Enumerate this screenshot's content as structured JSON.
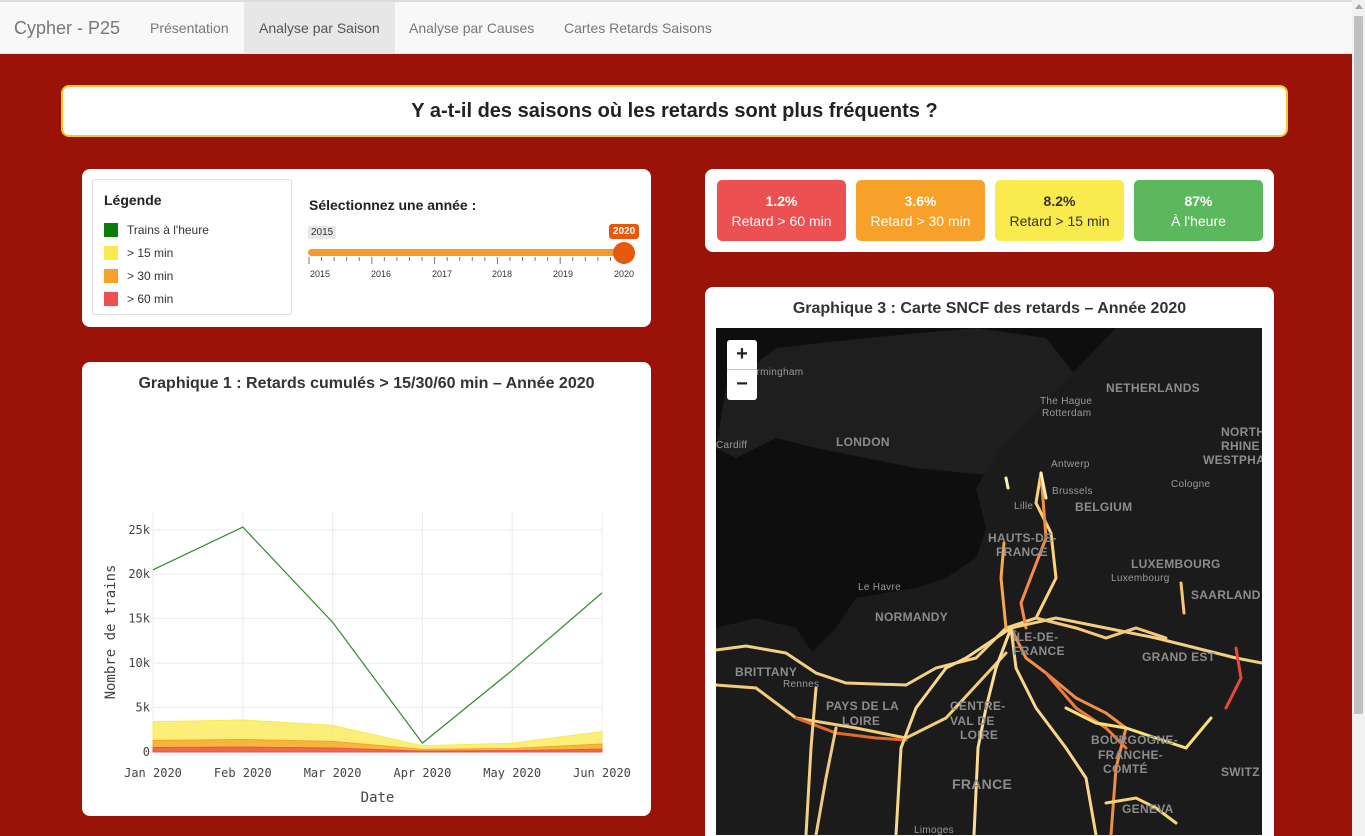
{
  "nav": {
    "brand": "Cypher - P25",
    "tabs": [
      "Présentation",
      "Analyse par Saison",
      "Analyse par Causes",
      "Cartes Retards Saisons"
    ],
    "active_tab": "Analyse par Saison"
  },
  "page_title": "Y a-t-il des saisons où les retards sont plus fréquents ?",
  "legend": {
    "title": "Légende",
    "items": [
      {
        "label": "Trains à l'heure",
        "color": "#0a7d0a"
      },
      {
        "label": "> 15 min",
        "color": "#f9ea4e"
      },
      {
        "label": "> 30 min",
        "color": "#f7a12a"
      },
      {
        "label": "> 60 min",
        "color": "#ec5050"
      }
    ]
  },
  "year_selector": {
    "label": "Sélectionnez une année :",
    "min": "2015",
    "max": "2020",
    "value": "2020",
    "ticks": [
      "2015",
      "2016",
      "2017",
      "2018",
      "2019",
      "2020"
    ]
  },
  "kpis": [
    {
      "value": "1.2%",
      "label": "Retard > 60 min",
      "bg": "#ec5050",
      "fg": "#ffffff"
    },
    {
      "value": "3.6%",
      "label": "Retard > 30 min",
      "bg": "#f7a12a",
      "fg": "#ffffff"
    },
    {
      "value": "8.2%",
      "label": "Retard > 15 min",
      "bg": "#f9ea4e",
      "fg": "#333333"
    },
    {
      "value": "87%",
      "label": "À l'heure",
      "bg": "#5cb85c",
      "fg": "#ffffff"
    }
  ],
  "chart1": {
    "title": "Graphique 1 : Retards cumulés > 15/30/60 min – Année 2020"
  },
  "chart_data": {
    "type": "line",
    "x": [
      "Jan 2020",
      "Feb 2020",
      "Mar 2020",
      "Apr 2020",
      "May 2020",
      "Jun 2020"
    ],
    "xlabel": "Date",
    "ylabel": "Nombre de trains",
    "ylim": [
      0,
      27000
    ],
    "yticks": [
      0,
      5000,
      10000,
      15000,
      20000,
      25000
    ],
    "ytick_labels": [
      "0",
      "5k",
      "10k",
      "15k",
      "20k",
      "25k"
    ],
    "grid": true,
    "series": [
      {
        "key": "on_time",
        "values": [
          20500,
          25300,
          14600,
          1000,
          9200,
          17900
        ],
        "color": "#2e8b2e",
        "kind": "line"
      },
      {
        "key": "gt15",
        "values": [
          3400,
          3600,
          3000,
          700,
          1000,
          2300
        ],
        "color": "#f9ea4e",
        "kind": "area"
      },
      {
        "key": "gt30",
        "values": [
          1300,
          1400,
          1200,
          300,
          400,
          900
        ],
        "color": "#f7a12a",
        "kind": "area"
      },
      {
        "key": "gt60",
        "values": [
          500,
          550,
          450,
          100,
          150,
          320
        ],
        "color": "#ec5050",
        "kind": "area"
      }
    ]
  },
  "map": {
    "title": "Graphique 3 : Carte SNCF des retards – Année 2020",
    "zoom_in": "+",
    "zoom_out": "−",
    "labels": [
      "irmingham",
      "The Hague",
      "Rotterdam",
      "NETHERLANDS",
      "Cardiff",
      "LONDON",
      "NORTH",
      "RHINE",
      "WESTPHA",
      "Antwerp",
      "Cologne",
      "Brussels",
      "Lille",
      "BELGIUM",
      "HAUTS-DE-",
      "FRANCE",
      "LUXEMBOURG",
      "Luxembourg",
      "Le Havre",
      "SAARLAND",
      "NORMANDY",
      "ÎLE-DE-",
      "FRANCE",
      "GRAND EST",
      "BRITTANY",
      "Rennes",
      "PAYS DE LA",
      "LOIRE",
      "CENTRE-",
      "VAL DE",
      "LOIRE",
      "BOURGOGNE-",
      "FRANCHE-",
      "COMTÉ",
      "FRANCE",
      "SWITZ",
      "GENEVA",
      "Limoges"
    ]
  }
}
